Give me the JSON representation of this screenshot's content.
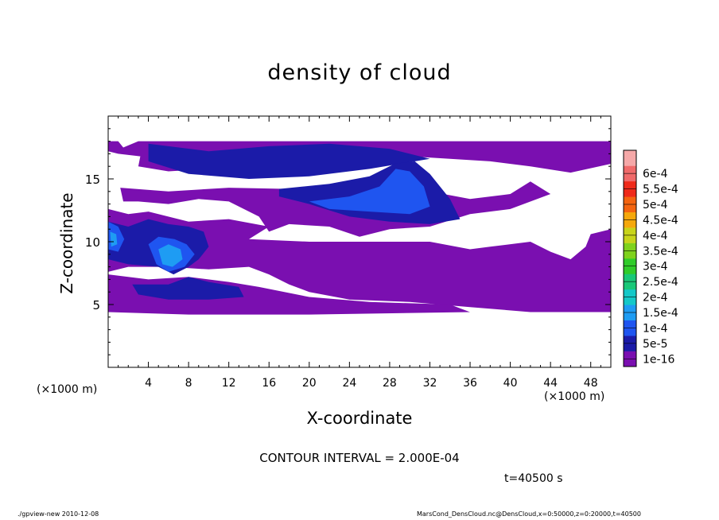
{
  "chart_data": {
    "type": "heatmap",
    "title": "density of cloud",
    "xlabel": "X-coordinate",
    "ylabel": "Z-coordinate",
    "x_unit_label_left": "(×1000 m)",
    "x_unit_label_right": "(×1000 m)",
    "xlim": [
      0,
      50
    ],
    "ylim": [
      0,
      20
    ],
    "x_ticks": [
      4,
      8,
      12,
      16,
      20,
      24,
      28,
      32,
      36,
      40,
      44,
      48
    ],
    "y_ticks": [
      5,
      10,
      15
    ],
    "colorbar": {
      "levels": [
        "1e-16",
        "5e-5",
        "1e-4",
        "1.5e-4",
        "2e-4",
        "2.5e-4",
        "3e-4",
        "3.5e-4",
        "4e-4",
        "4.5e-4",
        "5e-4",
        "5.5e-4",
        "6e-4"
      ],
      "colors": [
        "#7a0fb0",
        "#1b1ba8",
        "#1f55f0",
        "#1e9cf3",
        "#14c8c8",
        "#19c878",
        "#30cc2a",
        "#7fd21c",
        "#c8d41a",
        "#f5a80c",
        "#f46410",
        "#ef2a1a",
        "#f06a6a",
        "#f5a8a8"
      ]
    },
    "regions": [
      {
        "level": 0,
        "polygon": [
          [
            0,
            18
          ],
          [
            1,
            18
          ],
          [
            1.5,
            17.5
          ],
          [
            3,
            18
          ],
          [
            50,
            18
          ],
          [
            50,
            16.2
          ],
          [
            46,
            15.5
          ],
          [
            42,
            16
          ],
          [
            38,
            16.4
          ],
          [
            34,
            16.6
          ],
          [
            30,
            16.8
          ],
          [
            26,
            16.6
          ],
          [
            22,
            16
          ],
          [
            18,
            15.8
          ],
          [
            14,
            16
          ],
          [
            10,
            15.8
          ],
          [
            6,
            15.6
          ],
          [
            3,
            16
          ],
          [
            3.2,
            16.8
          ],
          [
            1,
            17
          ],
          [
            0,
            17.2
          ]
        ]
      },
      {
        "level": 0,
        "polygon": [
          [
            1.2,
            14.3
          ],
          [
            6,
            14
          ],
          [
            12,
            14.3
          ],
          [
            18,
            14.2
          ],
          [
            24,
            14.4
          ],
          [
            28,
            14.2
          ],
          [
            32,
            14
          ],
          [
            36,
            13.4
          ],
          [
            40,
            13.8
          ],
          [
            42,
            14.8
          ],
          [
            44,
            13.8
          ],
          [
            40,
            12.6
          ],
          [
            36,
            12.2
          ],
          [
            32,
            11.2
          ],
          [
            28,
            11
          ],
          [
            25,
            10.4
          ],
          [
            22,
            11.2
          ],
          [
            18,
            11.4
          ],
          [
            16,
            10.8
          ],
          [
            15,
            12
          ],
          [
            12,
            13.2
          ],
          [
            9,
            13.4
          ],
          [
            6,
            13
          ],
          [
            3,
            13.2
          ],
          [
            1.5,
            13.2
          ]
        ]
      },
      {
        "level": 0,
        "polygon": [
          [
            0,
            12.6
          ],
          [
            2,
            12.2
          ],
          [
            4,
            12.4
          ],
          [
            8,
            11.6
          ],
          [
            12,
            11.8
          ],
          [
            16,
            11.2
          ],
          [
            14,
            10.2
          ],
          [
            20,
            10
          ],
          [
            26,
            10
          ],
          [
            32,
            10
          ],
          [
            36,
            9.4
          ],
          [
            38,
            9.6
          ],
          [
            42,
            10
          ],
          [
            44,
            9.2
          ],
          [
            46,
            8.6
          ],
          [
            47.5,
            9.6
          ],
          [
            48,
            10.6
          ],
          [
            50,
            11
          ],
          [
            50,
            4.4
          ],
          [
            42,
            4.4
          ],
          [
            36,
            4.8
          ],
          [
            30,
            5.2
          ],
          [
            24,
            5.4
          ],
          [
            20,
            6
          ],
          [
            18,
            6.6
          ],
          [
            16,
            7.4
          ],
          [
            14,
            8
          ],
          [
            10,
            7.8
          ],
          [
            6,
            8
          ],
          [
            2,
            8
          ],
          [
            0,
            7.6
          ]
        ]
      },
      {
        "level": 0,
        "polygon": [
          [
            0,
            7.4
          ],
          [
            4,
            7
          ],
          [
            8,
            7.2
          ],
          [
            12,
            6.8
          ],
          [
            15,
            6.4
          ],
          [
            20,
            5.6
          ],
          [
            26,
            5.2
          ],
          [
            34,
            5
          ],
          [
            36,
            4.4
          ],
          [
            20,
            4.2
          ],
          [
            8,
            4.2
          ],
          [
            0,
            4.4
          ]
        ]
      },
      {
        "level": 1,
        "polygon": [
          [
            4,
            17.8
          ],
          [
            10,
            17.2
          ],
          [
            16,
            17.6
          ],
          [
            22,
            17.8
          ],
          [
            28,
            17.4
          ],
          [
            32,
            16.6
          ],
          [
            26,
            15.8
          ],
          [
            20,
            15.2
          ],
          [
            14,
            15
          ],
          [
            8,
            15.4
          ],
          [
            4,
            16.4
          ]
        ]
      },
      {
        "level": 1,
        "polygon": [
          [
            17,
            14.2
          ],
          [
            22,
            14.6
          ],
          [
            26,
            15.2
          ],
          [
            28.5,
            16.2
          ],
          [
            30.5,
            16.4
          ],
          [
            32,
            15.4
          ],
          [
            34,
            13.4
          ],
          [
            35,
            11.8
          ],
          [
            32,
            11.4
          ],
          [
            28,
            11.6
          ],
          [
            24,
            12
          ],
          [
            20,
            13
          ],
          [
            17,
            13.6
          ]
        ]
      },
      {
        "level": 1,
        "polygon": [
          [
            0,
            11.6
          ],
          [
            2,
            11.2
          ],
          [
            4,
            11.8
          ],
          [
            6,
            11.4
          ],
          [
            8,
            11.2
          ],
          [
            9.5,
            10.8
          ],
          [
            10,
            9.6
          ],
          [
            9,
            8.6
          ],
          [
            8,
            8
          ],
          [
            6.5,
            7.4
          ],
          [
            5,
            8
          ],
          [
            2,
            8.2
          ],
          [
            0,
            8.6
          ]
        ]
      },
      {
        "level": 1,
        "polygon": [
          [
            2.4,
            6.6
          ],
          [
            6,
            6.6
          ],
          [
            8,
            7.2
          ],
          [
            10,
            6.8
          ],
          [
            13,
            6.4
          ],
          [
            13.5,
            5.6
          ],
          [
            10,
            5.4
          ],
          [
            6,
            5.4
          ],
          [
            3,
            5.8
          ]
        ]
      },
      {
        "level": 2,
        "polygon": [
          [
            20,
            13.2
          ],
          [
            24,
            13.6
          ],
          [
            27,
            14.4
          ],
          [
            28.6,
            15.8
          ],
          [
            30,
            15.6
          ],
          [
            31.4,
            14.4
          ],
          [
            32,
            12.8
          ],
          [
            30,
            12.2
          ],
          [
            26,
            12.4
          ],
          [
            22,
            12.6
          ]
        ]
      },
      {
        "level": 2,
        "polygon": [
          [
            0,
            11.6
          ],
          [
            1,
            11.2
          ],
          [
            1.6,
            10.2
          ],
          [
            1,
            9.2
          ],
          [
            0,
            9.4
          ]
        ]
      },
      {
        "level": 2,
        "polygon": [
          [
            4,
            9.8
          ],
          [
            5,
            10.4
          ],
          [
            6.6,
            10.2
          ],
          [
            7.8,
            9.8
          ],
          [
            8.6,
            9
          ],
          [
            7.6,
            8
          ],
          [
            6,
            7.6
          ],
          [
            4.8,
            8.2
          ]
        ]
      },
      {
        "level": 3,
        "polygon": [
          [
            5,
            9.4
          ],
          [
            6,
            9.8
          ],
          [
            7.2,
            9.4
          ],
          [
            7.4,
            8.6
          ],
          [
            6.4,
            8
          ],
          [
            5.4,
            8.2
          ]
        ]
      },
      {
        "level": 3,
        "polygon": [
          [
            0.2,
            10.8
          ],
          [
            0.8,
            10.6
          ],
          [
            0.9,
            9.8
          ],
          [
            0.3,
            9.6
          ]
        ]
      }
    ]
  },
  "annotations": {
    "contour_interval": "CONTOUR INTERVAL = 2.000E-04",
    "time": "t=40500 s",
    "footer_left": "./gpview-new   2010-12-08",
    "footer_right": "MarsCond_DensCloud.nc@DensCloud,x=0:50000,z=0:20000,t=40500"
  }
}
